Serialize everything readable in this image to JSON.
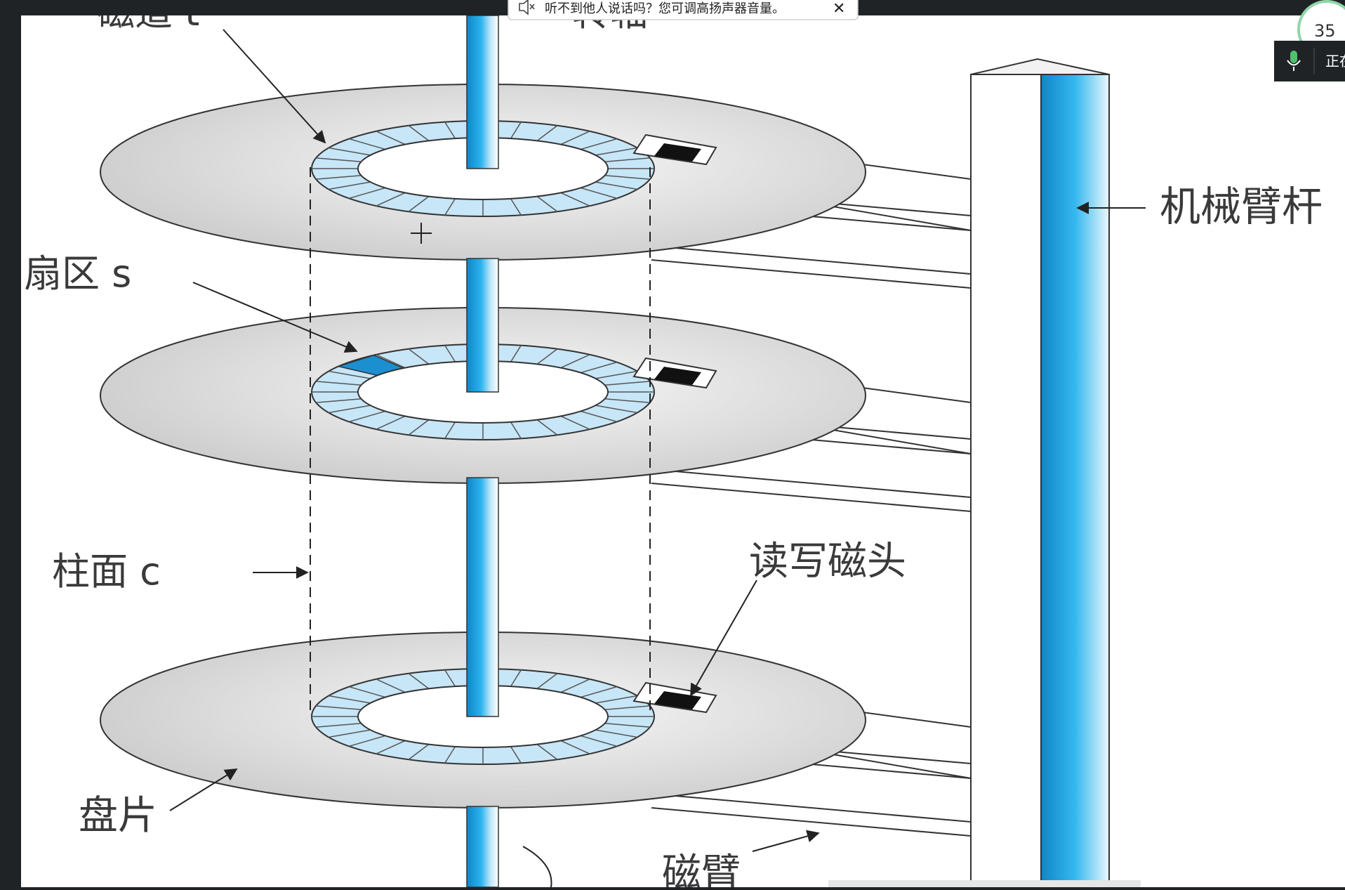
{
  "notification": {
    "text": "听不到他人说话吗？您可调高扬声器音量。",
    "close_glyph": "✕",
    "icon": "speaker-muted-icon"
  },
  "side_widget": {
    "badge_text": "35",
    "status_text": "正在",
    "icon": "microphone-icon"
  },
  "diagram": {
    "labels": {
      "track_top": "磁道 t",
      "spindle_top": "转轴",
      "sector": "扇区 s",
      "cylinder": "柱面 c",
      "arm_assembly": "机械臂杆",
      "read_write_head": "读写磁头",
      "platter": "盘片",
      "disk_arm": "磁臂"
    },
    "colors": {
      "spindle_blue": "#1da1e0",
      "ring_light_blue": "#c7e6f7",
      "sector_highlight": "#1c8fd0",
      "platter_gray": "#d6d6d6",
      "head_black": "#111111"
    }
  }
}
